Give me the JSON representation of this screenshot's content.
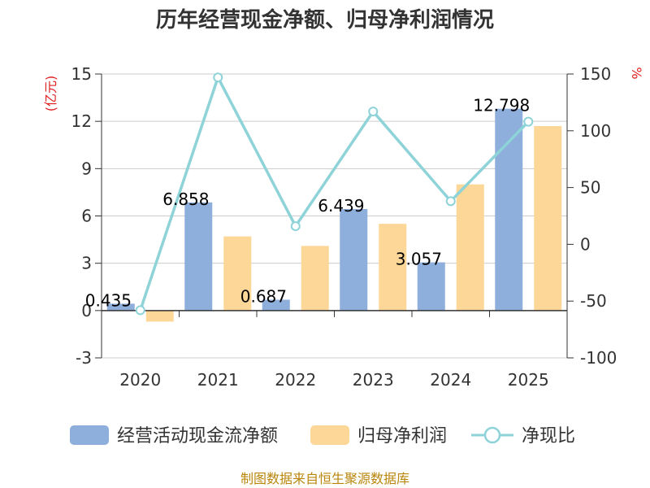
{
  "chart_data": {
    "type": "bar",
    "title": "历年经营现金净额、归母净利润情况",
    "categories": [
      "2020",
      "2021",
      "2022",
      "2023",
      "2024",
      "2025"
    ],
    "series": [
      {
        "name": "经营活动现金流净额",
        "type": "bar",
        "axis": "left",
        "color": "#8eaedb",
        "values": [
          0.435,
          6.858,
          0.687,
          6.439,
          3.057,
          12.798
        ],
        "labels": [
          "0.435",
          "6.858",
          "0.687",
          "6.439",
          "3.057",
          "12.798"
        ]
      },
      {
        "name": "归母净利润",
        "type": "bar",
        "axis": "left",
        "color": "#fdd797",
        "values": [
          -0.7,
          4.7,
          4.1,
          5.5,
          8.0,
          11.7
        ]
      },
      {
        "name": "净现比",
        "type": "line",
        "axis": "right",
        "color": "#8dd3d8",
        "values": [
          -58,
          147,
          16,
          117,
          38,
          108
        ]
      }
    ],
    "left_axis": {
      "unit": "(亿元)",
      "ylim": [
        -3,
        15
      ],
      "ticks": [
        -3,
        0,
        3,
        6,
        9,
        12,
        15
      ]
    },
    "right_axis": {
      "unit": "%",
      "ylim": [
        -100,
        150
      ],
      "ticks": [
        -100,
        -50,
        0,
        50,
        100,
        150
      ]
    },
    "grid": true,
    "legend_position": "bottom"
  },
  "source_text": "制图数据来自恒生聚源数据库"
}
